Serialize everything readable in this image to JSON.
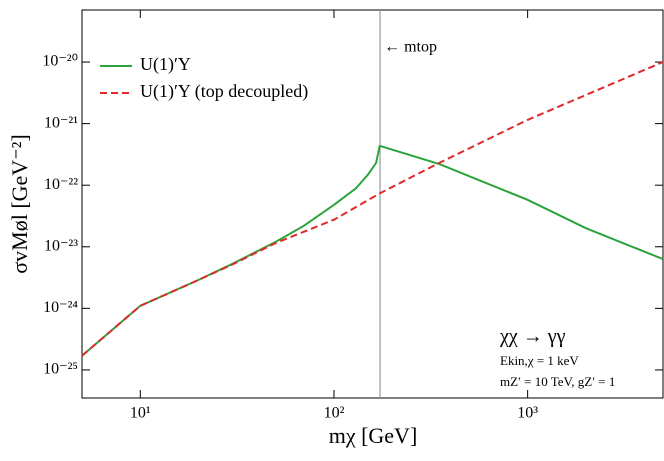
{
  "chart_data": {
    "type": "line",
    "xlabel": "mχ [GeV]",
    "ylabel": "σvMøl [GeV⁻²]",
    "xscale": "log",
    "yscale": "log",
    "xlim": [
      5,
      5000
    ],
    "ylim": [
      3.5e-26,
      7e-20
    ],
    "xticks": [
      {
        "value": 10,
        "label": "10¹"
      },
      {
        "value": 100,
        "label": "10²"
      },
      {
        "value": 1000,
        "label": "10³"
      }
    ],
    "yticks": [
      {
        "value": 1e-25,
        "label": "10⁻²⁵"
      },
      {
        "value": 1e-24,
        "label": "10⁻²⁴"
      },
      {
        "value": 1e-23,
        "label": "10⁻²³"
      },
      {
        "value": 1e-22,
        "label": "10⁻²²"
      },
      {
        "value": 1e-21,
        "label": "10⁻²¹"
      },
      {
        "value": 1e-20,
        "label": "10⁻²⁰"
      }
    ],
    "legend": "upper left",
    "series": [
      {
        "name": "U(1)′Y",
        "color": "#2ca33a",
        "style": "solid",
        "x": [
          5,
          7,
          10,
          20,
          30,
          50,
          70,
          100,
          130,
          150,
          165,
          172,
          175,
          350,
          1000,
          2000,
          5000
        ],
        "values": [
          1.7e-25,
          4.2e-25,
          1.1e-24,
          2.9e-24,
          5.3e-24,
          1.2e-23,
          2.2e-23,
          4.8e-23,
          8.9e-23,
          1.5e-22,
          2.3e-22,
          4.3e-22,
          4.3e-22,
          2.2e-22,
          5.8e-23,
          2e-23,
          6.3e-24
        ]
      },
      {
        "name": "U(1)′Y (top decoupled)",
        "color": "#e0292b",
        "style": "dashed",
        "x": [
          5,
          7,
          10,
          20,
          30,
          50,
          100,
          173,
          350,
          1000,
          5000
        ],
        "values": [
          1.7e-25,
          4.2e-25,
          1.1e-24,
          2.9e-24,
          5.2e-24,
          1.15e-23,
          2.75e-23,
          7.4e-23,
          2.3e-22,
          1.15e-21,
          1e-20
        ]
      }
    ],
    "vline": {
      "x": 173,
      "label": "← mtop",
      "color": "#999999"
    },
    "annotations": [
      "χχ → γγ",
      "Ekin,χ = 1 keV",
      "mZ′ = 10 TeV, gZ′ = 1"
    ]
  }
}
